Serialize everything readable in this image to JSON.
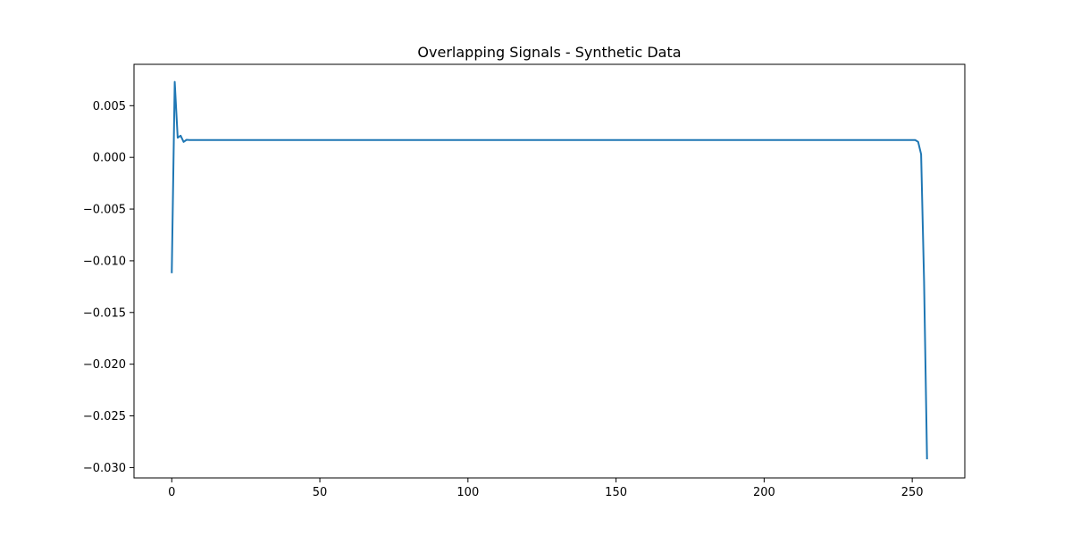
{
  "chart_data": {
    "type": "line",
    "title": "Overlapping Signals - Synthetic Data",
    "xlabel": "",
    "ylabel": "",
    "xlim": [
      -12.75,
      267.75
    ],
    "ylim": [
      -0.031,
      0.009
    ],
    "x_ticks": [
      0,
      50,
      100,
      150,
      200,
      250
    ],
    "x_tick_labels": [
      "0",
      "50",
      "100",
      "150",
      "200",
      "250"
    ],
    "y_ticks": [
      0.005,
      0.0,
      -0.005,
      -0.01,
      -0.015,
      -0.02,
      -0.025,
      -0.03
    ],
    "y_tick_labels": [
      "0.005",
      "0.000",
      "−0.005",
      "−0.010",
      "−0.015",
      "−0.020",
      "−0.025",
      "−0.030"
    ],
    "grid": false,
    "series": [
      {
        "color": "#1f77b4",
        "x": [
          0,
          1,
          2,
          3,
          4,
          5,
          6,
          7,
          8,
          249,
          250,
          251,
          252,
          253,
          254,
          255
        ],
        "y": [
          -0.0112,
          0.0073,
          0.0019,
          0.0021,
          0.0015,
          0.0017,
          0.00168,
          0.00168,
          0.00168,
          0.00168,
          0.00168,
          0.00168,
          0.0015,
          0.0003,
          -0.012,
          -0.0292
        ]
      }
    ]
  }
}
